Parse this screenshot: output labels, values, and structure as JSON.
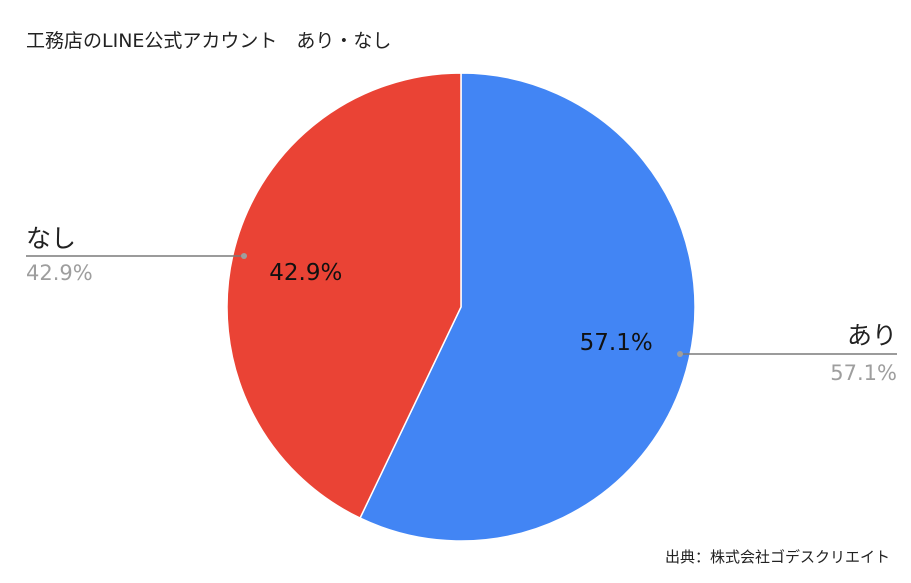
{
  "chart_data": {
    "type": "pie",
    "title": "工務店のLINE公式アカウント　あり・なし",
    "categories": [
      "あり",
      "なし"
    ],
    "values": [
      57.1,
      42.9
    ],
    "value_labels": [
      "57.1%",
      "42.9%"
    ],
    "colors": [
      "#4285f4",
      "#ea4335"
    ],
    "legend": "callouts",
    "source": "出典：株式会社ゴデスクリエイト"
  }
}
